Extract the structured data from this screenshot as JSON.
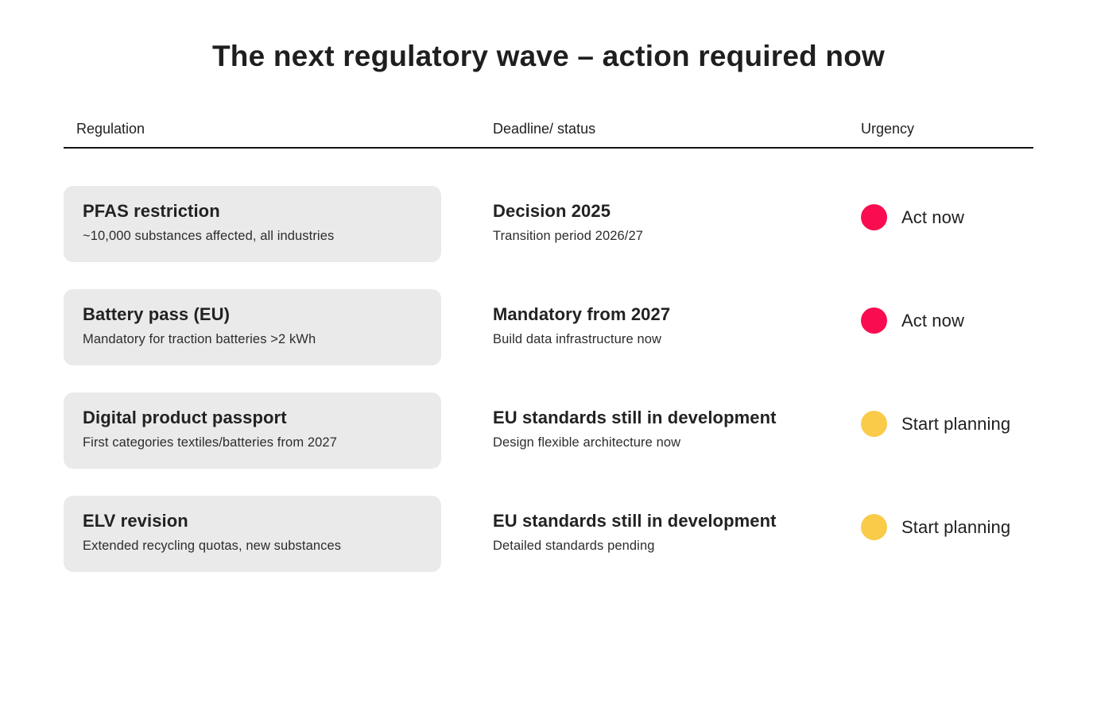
{
  "page": {
    "title": "The next regulatory wave – action required now"
  },
  "colors": {
    "act_now_dot": "#F90D50",
    "start_planning_dot": "#F9CB49",
    "card_background": "#EAEAEA",
    "text": "#222222"
  },
  "table": {
    "headers": [
      {
        "label": "Regulation"
      },
      {
        "label": "Deadline/ status"
      },
      {
        "label": "Urgency"
      }
    ],
    "rows": [
      {
        "regulation": {
          "title": "PFAS restriction",
          "subtitle": "~10,000 substances affected, all industries"
        },
        "deadline": {
          "title": "Decision 2025",
          "subtitle": "Transition period 2026/27"
        },
        "urgency": {
          "label": "Act now",
          "level": "act-now",
          "dot_color": "#F90D50"
        }
      },
      {
        "regulation": {
          "title": "Battery pass (EU)",
          "subtitle": "Mandatory for traction batteries >2 kWh"
        },
        "deadline": {
          "title": "Mandatory from 2027",
          "subtitle": "Build data infrastructure now"
        },
        "urgency": {
          "label": "Act now",
          "level": "act-now",
          "dot_color": "#F90D50"
        }
      },
      {
        "regulation": {
          "title": "Digital product passport",
          "subtitle": "First categories textiles/batteries from 2027"
        },
        "deadline": {
          "title": "EU standards still in development",
          "subtitle": "Design flexible architecture now"
        },
        "urgency": {
          "label": "Start planning",
          "level": "start-planning",
          "dot_color": "#F9CB49"
        }
      },
      {
        "regulation": {
          "title": "ELV revision",
          "subtitle": "Extended recycling quotas, new substances"
        },
        "deadline": {
          "title": "EU standards still in development",
          "subtitle": "Detailed standards pending"
        },
        "urgency": {
          "label": "Start planning",
          "level": "start-planning",
          "dot_color": "#F9CB49"
        }
      }
    ]
  }
}
